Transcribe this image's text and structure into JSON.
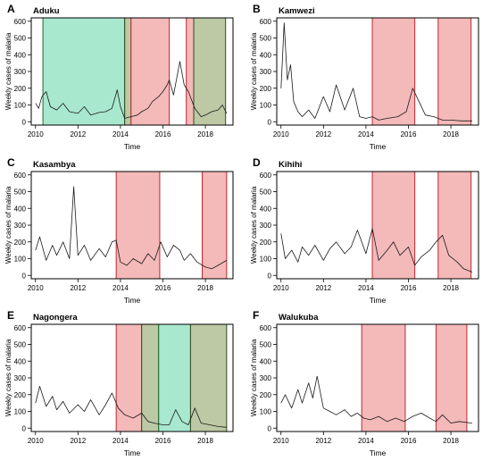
{
  "figure": {
    "colors": {
      "red_band": "#f4b9b9",
      "red_edge": "#c1272d",
      "green_band": "#a8e8cf",
      "green_edge": "#1e6b2e",
      "olive_band": "#bcc9a4",
      "olive_edge": "#2f4a1f",
      "line": "#1a1a1a",
      "frame": "#000000"
    }
  },
  "chart_data": [
    {
      "type": "line",
      "panel_letter": "A",
      "title": "Aduku",
      "xlabel": "Time",
      "ylabel": "Weekly cases of malaria",
      "xlim": [
        2009.8,
        2019.3
      ],
      "ylim": [
        -20,
        620
      ],
      "xticks": [
        "2010",
        "2012",
        "2014",
        "2016",
        "2018"
      ],
      "yticks": [
        "0",
        "100",
        "200",
        "300",
        "400",
        "500",
        "600"
      ],
      "intervention_periods": [
        {
          "start": 2010.35,
          "end": 2014.2,
          "color": "green"
        },
        {
          "start": 2014.2,
          "end": 2014.5,
          "color": "olive"
        },
        {
          "start": 2014.5,
          "end": 2016.3,
          "color": "red"
        },
        {
          "start": 2017.1,
          "end": 2017.45,
          "color": "red"
        },
        {
          "start": 2017.45,
          "end": 2018.95,
          "color": "olive"
        }
      ],
      "series": [
        {
          "x": [
            2010.0,
            2010.15,
            2010.3,
            2010.5,
            2010.7,
            2011.0,
            2011.3,
            2011.6,
            2012.0,
            2012.3,
            2012.6,
            2013.0,
            2013.3,
            2013.6,
            2013.85,
            2014.0,
            2014.2,
            2014.5,
            2014.8,
            2015.0,
            2015.3,
            2015.5,
            2015.8,
            2016.0,
            2016.2,
            2016.3,
            2016.5,
            2016.8,
            2017.0,
            2017.2,
            2017.5,
            2017.8,
            2018.0,
            2018.3,
            2018.6,
            2018.8,
            2019.0
          ],
          "y": [
            110,
            80,
            150,
            180,
            90,
            70,
            110,
            60,
            50,
            90,
            40,
            55,
            60,
            80,
            190,
            90,
            20,
            30,
            40,
            60,
            80,
            120,
            150,
            180,
            220,
            250,
            160,
            360,
            220,
            180,
            80,
            30,
            40,
            60,
            70,
            100,
            50
          ]
        }
      ]
    },
    {
      "type": "line",
      "panel_letter": "B",
      "title": "Kamwezi",
      "xlabel": "Time",
      "ylabel": "Weekly cases of malaria",
      "xlim": [
        2009.8,
        2019.3
      ],
      "ylim": [
        -20,
        620
      ],
      "xticks": [
        "2010",
        "2012",
        "2014",
        "2016",
        "2018"
      ],
      "yticks": [
        "0",
        "100",
        "200",
        "300",
        "400",
        "500",
        "600"
      ],
      "intervention_periods": [
        {
          "start": 2014.3,
          "end": 2016.3,
          "color": "red"
        },
        {
          "start": 2017.4,
          "end": 2018.95,
          "color": "red"
        }
      ],
      "series": [
        {
          "x": [
            2010.0,
            2010.15,
            2010.3,
            2010.45,
            2010.6,
            2010.8,
            2011.0,
            2011.3,
            2011.6,
            2012.0,
            2012.3,
            2012.6,
            2013.0,
            2013.4,
            2013.7,
            2014.0,
            2014.3,
            2014.6,
            2015.0,
            2015.5,
            2015.9,
            2016.2,
            2016.5,
            2016.8,
            2017.2,
            2017.6,
            2018.0,
            2018.5,
            2019.0
          ],
          "y": [
            200,
            590,
            250,
            340,
            120,
            60,
            30,
            70,
            20,
            150,
            60,
            220,
            70,
            200,
            30,
            20,
            30,
            10,
            20,
            30,
            60,
            200,
            120,
            40,
            30,
            10,
            10,
            5,
            5
          ]
        }
      ]
    },
    {
      "type": "line",
      "panel_letter": "C",
      "title": "Kasambya",
      "xlabel": "Time",
      "ylabel": "Weekly cases of malaria",
      "xlim": [
        2009.8,
        2019.3
      ],
      "ylim": [
        -20,
        620
      ],
      "xticks": [
        "2010",
        "2012",
        "2014",
        "2016",
        "2018"
      ],
      "yticks": [
        "0",
        "100",
        "200",
        "300",
        "400",
        "500",
        "600"
      ],
      "intervention_periods": [
        {
          "start": 2013.8,
          "end": 2015.85,
          "color": "red"
        },
        {
          "start": 2017.85,
          "end": 2019.0,
          "color": "red"
        }
      ],
      "series": [
        {
          "x": [
            2010.0,
            2010.2,
            2010.5,
            2010.8,
            2011.0,
            2011.3,
            2011.6,
            2011.8,
            2012.0,
            2012.3,
            2012.6,
            2013.0,
            2013.3,
            2013.6,
            2013.8,
            2014.0,
            2014.3,
            2014.6,
            2015.0,
            2015.3,
            2015.6,
            2015.9,
            2016.2,
            2016.5,
            2016.8,
            2017.0,
            2017.3,
            2017.6,
            2018.0,
            2018.3,
            2018.6,
            2019.0
          ],
          "y": [
            150,
            230,
            90,
            180,
            120,
            200,
            100,
            530,
            120,
            180,
            90,
            160,
            110,
            200,
            210,
            80,
            60,
            100,
            70,
            130,
            90,
            200,
            110,
            180,
            150,
            90,
            130,
            80,
            50,
            40,
            60,
            90
          ]
        }
      ]
    },
    {
      "type": "line",
      "panel_letter": "D",
      "title": "Kihihi",
      "xlabel": "Time",
      "ylabel": "Weekly cases of malaria",
      "xlim": [
        2009.8,
        2019.3
      ],
      "ylim": [
        -20,
        620
      ],
      "xticks": [
        "2010",
        "2012",
        "2014",
        "2016",
        "2018"
      ],
      "yticks": [
        "0",
        "100",
        "200",
        "300",
        "400",
        "500",
        "600"
      ],
      "intervention_periods": [
        {
          "start": 2014.3,
          "end": 2016.3,
          "color": "red"
        },
        {
          "start": 2017.4,
          "end": 2018.95,
          "color": "red"
        }
      ],
      "series": [
        {
          "x": [
            2010.0,
            2010.2,
            2010.5,
            2010.8,
            2011.0,
            2011.3,
            2011.6,
            2012.0,
            2012.3,
            2012.6,
            2013.0,
            2013.3,
            2013.6,
            2014.0,
            2014.3,
            2014.6,
            2015.0,
            2015.3,
            2015.6,
            2016.0,
            2016.3,
            2016.6,
            2017.0,
            2017.3,
            2017.6,
            2017.9,
            2018.3,
            2018.6,
            2019.0
          ],
          "y": [
            250,
            100,
            150,
            80,
            170,
            120,
            180,
            90,
            160,
            200,
            130,
            170,
            270,
            130,
            280,
            90,
            150,
            200,
            120,
            170,
            60,
            110,
            150,
            200,
            240,
            120,
            80,
            40,
            20
          ]
        }
      ]
    },
    {
      "type": "line",
      "panel_letter": "E",
      "title": "Nagongera",
      "xlabel": "Time",
      "ylabel": "Weekly cases of malaria",
      "xlim": [
        2009.8,
        2019.3
      ],
      "ylim": [
        -20,
        620
      ],
      "xticks": [
        "2010",
        "2012",
        "2014",
        "2016",
        "2018"
      ],
      "yticks": [
        "0",
        "100",
        "200",
        "300",
        "400",
        "500",
        "600"
      ],
      "intervention_periods": [
        {
          "start": 2013.8,
          "end": 2015.0,
          "color": "red"
        },
        {
          "start": 2015.0,
          "end": 2015.8,
          "color": "olive"
        },
        {
          "start": 2015.8,
          "end": 2017.3,
          "color": "green"
        },
        {
          "start": 2017.3,
          "end": 2019.0,
          "color": "olive"
        }
      ],
      "series": [
        {
          "x": [
            2010.0,
            2010.2,
            2010.5,
            2010.8,
            2011.0,
            2011.3,
            2011.6,
            2012.0,
            2012.3,
            2012.6,
            2013.0,
            2013.3,
            2013.6,
            2013.9,
            2014.2,
            2014.6,
            2015.0,
            2015.3,
            2015.6,
            2016.0,
            2016.3,
            2016.6,
            2016.9,
            2017.2,
            2017.5,
            2017.8,
            2018.2,
            2018.6,
            2019.0
          ],
          "y": [
            150,
            250,
            130,
            190,
            110,
            160,
            90,
            140,
            100,
            170,
            80,
            140,
            210,
            120,
            80,
            60,
            90,
            40,
            30,
            20,
            20,
            110,
            40,
            20,
            120,
            30,
            20,
            10,
            5
          ]
        }
      ]
    },
    {
      "type": "line",
      "panel_letter": "F",
      "title": "Walukuba",
      "xlabel": "Time",
      "ylabel": "Weekly cases of malaria",
      "xlim": [
        2009.8,
        2019.3
      ],
      "ylim": [
        -20,
        620
      ],
      "xticks": [
        "2010",
        "2012",
        "2014",
        "2016",
        "2018"
      ],
      "yticks": [
        "0",
        "100",
        "200",
        "300",
        "400",
        "500",
        "600"
      ],
      "intervention_periods": [
        {
          "start": 2013.8,
          "end": 2015.85,
          "color": "red"
        },
        {
          "start": 2017.3,
          "end": 2018.75,
          "color": "red"
        }
      ],
      "series": [
        {
          "x": [
            2010.0,
            2010.2,
            2010.5,
            2010.8,
            2011.0,
            2011.3,
            2011.5,
            2011.7,
            2012.0,
            2012.3,
            2012.6,
            2013.0,
            2013.3,
            2013.6,
            2013.9,
            2014.2,
            2014.6,
            2015.0,
            2015.4,
            2015.8,
            2016.2,
            2016.6,
            2017.0,
            2017.3,
            2017.6,
            2018.0,
            2018.4,
            2019.0
          ],
          "y": [
            150,
            200,
            120,
            230,
            150,
            270,
            180,
            310,
            120,
            100,
            80,
            110,
            70,
            90,
            60,
            50,
            70,
            40,
            60,
            40,
            70,
            90,
            60,
            40,
            80,
            30,
            40,
            30
          ]
        }
      ]
    }
  ]
}
